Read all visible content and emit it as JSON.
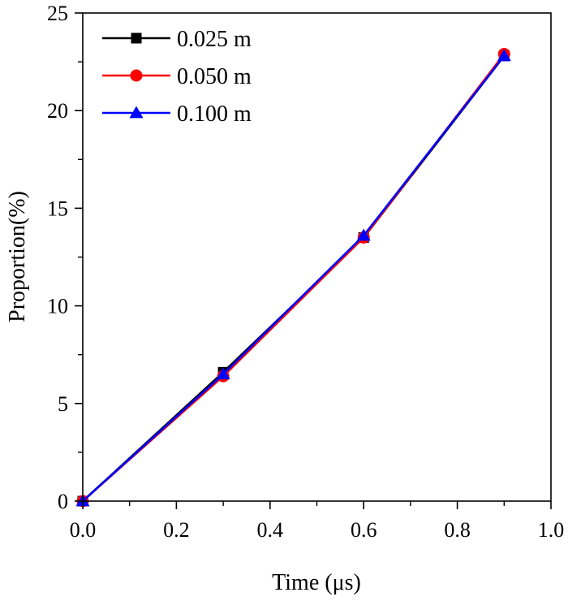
{
  "chart_data": {
    "type": "line",
    "title": "",
    "xlabel": "Time (μs)",
    "ylabel": "Proportion(%)",
    "xlim": [
      0.0,
      1.0
    ],
    "ylim": [
      0,
      25
    ],
    "x_ticks": [
      "0.0",
      "0.2",
      "0.4",
      "0.6",
      "0.8",
      "1.0"
    ],
    "y_ticks": [
      "0",
      "5",
      "10",
      "15",
      "20",
      "25"
    ],
    "grid": false,
    "legend_position": "top-left",
    "series": [
      {
        "name": "0.025 m",
        "color": "#000000",
        "marker": "square",
        "x": [
          0.0,
          0.3,
          0.6,
          0.9
        ],
        "values": [
          0.0,
          6.6,
          13.5,
          22.8
        ]
      },
      {
        "name": "0.050 m",
        "color": "#ff0000",
        "marker": "circle",
        "x": [
          0.0,
          0.3,
          0.6,
          0.9
        ],
        "values": [
          0.0,
          6.4,
          13.5,
          22.9
        ]
      },
      {
        "name": "0.100 m",
        "color": "#0000ff",
        "marker": "triangle",
        "x": [
          0.0,
          0.3,
          0.6,
          0.9
        ],
        "values": [
          0.0,
          6.5,
          13.6,
          22.8
        ]
      }
    ]
  }
}
